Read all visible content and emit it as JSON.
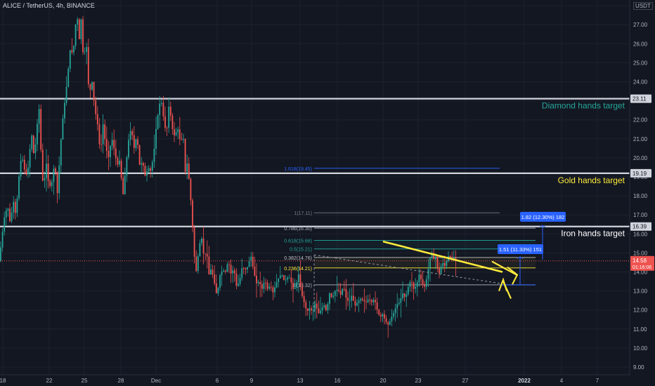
{
  "header": {
    "title": "ALICE / TetherUS, 4h, BINANCE",
    "currency": "USDT"
  },
  "colors": {
    "background": "#131722",
    "grid": "#1e222d",
    "up": "#26a69a",
    "down": "#ef5350",
    "level": "#d1d4dc",
    "diamond": "#26a69a",
    "gold": "#ffeb3b",
    "iron": "#ffffff",
    "trend": "#ffeb3b",
    "fib_blue": "#2962ff",
    "price_tag": "#ef5350"
  },
  "chart_data": {
    "type": "candlestick",
    "ylim": [
      9,
      28.4
    ],
    "y_ticks": [
      "9.00",
      "10.00",
      "11.00",
      "12.00",
      "13.00",
      "14.00",
      "15.00",
      "16.00",
      "17.00",
      "18.00",
      "19.00",
      "20.00",
      "21.00",
      "22.00",
      "23.00",
      "24.00",
      "25.00",
      "26.00",
      "27.00",
      "28.00"
    ],
    "x_ticks": [
      "18",
      "22",
      "25",
      "28",
      "Dec",
      "6",
      "9",
      "13",
      "16",
      "20",
      "23",
      "27",
      "2022",
      "4",
      "7"
    ],
    "price_path": [
      [
        0,
        14.6
      ],
      [
        3,
        15.5
      ],
      [
        7,
        16.8
      ],
      [
        12,
        17.5
      ],
      [
        16,
        16.5
      ],
      [
        20,
        17.8
      ],
      [
        24,
        16.9
      ],
      [
        27,
        18.6
      ],
      [
        32,
        20.2
      ],
      [
        36,
        19.4
      ],
      [
        40,
        19.0
      ],
      [
        44,
        20.5
      ],
      [
        47,
        21.3
      ],
      [
        50,
        19.8
      ],
      [
        53,
        21.4
      ],
      [
        57,
        22.6
      ],
      [
        60,
        20.0
      ],
      [
        63,
        18.3
      ],
      [
        67,
        19.8
      ],
      [
        71,
        18.4
      ],
      [
        75,
        18.7
      ],
      [
        79,
        19.8
      ],
      [
        83,
        18.1
      ],
      [
        87,
        20.5
      ],
      [
        91,
        22.2
      ],
      [
        95,
        23.4
      ],
      [
        98,
        24.5
      ],
      [
        102,
        26.0
      ],
      [
        105,
        25.2
      ],
      [
        108,
        26.8
      ],
      [
        111,
        27.5
      ],
      [
        114,
        26.2
      ],
      [
        117,
        27.4
      ],
      [
        120,
        25.0
      ],
      [
        124,
        26.2
      ],
      [
        128,
        23.2
      ],
      [
        132,
        24.1
      ],
      [
        136,
        22.6
      ],
      [
        140,
        21.8
      ],
      [
        144,
        20.2
      ],
      [
        148,
        21.8
      ],
      [
        152,
        20.5
      ],
      [
        156,
        20.0
      ],
      [
        160,
        21.1
      ],
      [
        164,
        20.4
      ],
      [
        168,
        19.6
      ],
      [
        172,
        19.9
      ],
      [
        176,
        17.9
      ],
      [
        180,
        19.4
      ],
      [
        184,
        20.9
      ],
      [
        188,
        21.6
      ],
      [
        192,
        20.5
      ],
      [
        196,
        21.2
      ],
      [
        200,
        19.6
      ],
      [
        204,
        19.8
      ],
      [
        208,
        19.0
      ],
      [
        212,
        19.5
      ],
      [
        216,
        19.3
      ],
      [
        220,
        20.2
      ],
      [
        224,
        21.8
      ],
      [
        227,
        22.5
      ],
      [
        230,
        23.2
      ],
      [
        234,
        22.1
      ],
      [
        238,
        21.2
      ],
      [
        242,
        22.9
      ],
      [
        246,
        21.6
      ],
      [
        250,
        21.1
      ],
      [
        254,
        21.6
      ],
      [
        258,
        20.8
      ],
      [
        262,
        21.2
      ],
      [
        265,
        19.2
      ],
      [
        268,
        19.8
      ],
      [
        271,
        18.5
      ],
      [
        274,
        17.2
      ],
      [
        277,
        15.2
      ],
      [
        280,
        13.9
      ],
      [
        283,
        14.8
      ],
      [
        286,
        15.6
      ],
      [
        289,
        15.8
      ],
      [
        292,
        14.5
      ],
      [
        295,
        15.4
      ],
      [
        298,
        13.8
      ],
      [
        302,
        14.2
      ],
      [
        306,
        13.5
      ],
      [
        310,
        12.7
      ],
      [
        314,
        13.8
      ],
      [
        318,
        14.1
      ],
      [
        322,
        14.0
      ],
      [
        326,
        14.6
      ],
      [
        330,
        13.9
      ],
      [
        334,
        14.2
      ],
      [
        338,
        13.2
      ],
      [
        342,
        13.5
      ],
      [
        346,
        14.3
      ],
      [
        350,
        14.1
      ],
      [
        354,
        14.3
      ],
      [
        358,
        14.9
      ],
      [
        362,
        14.1
      ],
      [
        366,
        13.4
      ],
      [
        370,
        13.5
      ],
      [
        374,
        13.1
      ],
      [
        378,
        13.6
      ],
      [
        382,
        13.1
      ],
      [
        386,
        13.3
      ],
      [
        390,
        12.9
      ],
      [
        394,
        13.4
      ],
      [
        398,
        13.7
      ],
      [
        402,
        13.9
      ],
      [
        406,
        13.5
      ],
      [
        410,
        13.7
      ],
      [
        414,
        13.7
      ],
      [
        418,
        13.1
      ],
      [
        422,
        13.2
      ],
      [
        426,
        13.9
      ],
      [
        430,
        12.9
      ],
      [
        434,
        12.4
      ],
      [
        438,
        11.9
      ],
      [
        442,
        12.1
      ],
      [
        446,
        11.9
      ],
      [
        450,
        12.4
      ],
      [
        454,
        11.8
      ],
      [
        458,
        12.0
      ],
      [
        462,
        12.3
      ],
      [
        466,
        11.9
      ],
      [
        470,
        12.9
      ],
      [
        474,
        12.6
      ],
      [
        478,
        13.0
      ],
      [
        482,
        13.1
      ],
      [
        486,
        12.8
      ],
      [
        490,
        13.3
      ],
      [
        494,
        12.6
      ],
      [
        498,
        12.4
      ],
      [
        502,
        12.8
      ],
      [
        506,
        12.2
      ],
      [
        510,
        12.4
      ],
      [
        514,
        12.6
      ],
      [
        518,
        12.5
      ],
      [
        522,
        12.4
      ],
      [
        526,
        12.6
      ],
      [
        530,
        12.4
      ],
      [
        534,
        12.6
      ],
      [
        538,
        12.0
      ],
      [
        542,
        11.6
      ],
      [
        546,
        11.8
      ],
      [
        550,
        11.4
      ],
      [
        554,
        11.2
      ],
      [
        558,
        11.6
      ],
      [
        562,
        11.9
      ],
      [
        566,
        12.3
      ],
      [
        570,
        12.4
      ],
      [
        574,
        12.9
      ],
      [
        578,
        12.6
      ],
      [
        582,
        13.2
      ],
      [
        586,
        13.6
      ],
      [
        590,
        13.1
      ],
      [
        594,
        13.3
      ],
      [
        598,
        13.9
      ],
      [
        602,
        13.4
      ],
      [
        606,
        13.2
      ],
      [
        610,
        14.0
      ],
      [
        613,
        14.7
      ],
      [
        616,
        15.0
      ],
      [
        619,
        14.6
      ],
      [
        622,
        14.9
      ],
      [
        625,
        13.7
      ],
      [
        628,
        14.2
      ],
      [
        631,
        14.5
      ],
      [
        634,
        14.3
      ],
      [
        637,
        14.6
      ],
      [
        640,
        14.9
      ],
      [
        643,
        14.6
      ],
      [
        646,
        14.8
      ],
      [
        650,
        14.58
      ]
    ],
    "horizontal_levels": [
      {
        "price": 23.11,
        "tag": "23.11"
      },
      {
        "price": 19.19,
        "tag": "19.19"
      },
      {
        "price": 16.39,
        "tag": "16.39"
      }
    ],
    "target_labels": [
      {
        "text": "Diamond hands target",
        "price": 23.11,
        "color": "#26a69a"
      },
      {
        "text": "Gold hands target",
        "price": 19.19,
        "color": "#ffeb3b"
      },
      {
        "text": "Iron hands target",
        "price": 16.39,
        "color": "#ffffff"
      }
    ],
    "fib_levels": [
      {
        "label": "1.618(19.45)",
        "price": 19.45,
        "color": "#2962ff"
      },
      {
        "label": "1(17.11)",
        "price": 17.11,
        "color": "#787b86"
      },
      {
        "label": "0.786(16.30)",
        "price": 16.3,
        "color": "#b2b5be"
      },
      {
        "label": "0.618(15.66)",
        "price": 15.66,
        "color": "#26a69a"
      },
      {
        "label": "0.5(15.21)",
        "price": 15.21,
        "color": "#26a69a"
      },
      {
        "label": "0.382(14.76)",
        "price": 14.76,
        "color": "#c0c0c0"
      },
      {
        "label": "0.236(14.21)",
        "price": 14.21,
        "color": "#ffeb3b"
      },
      {
        "label": "0(13.32)",
        "price": 13.32,
        "color": "#b2b5be"
      }
    ],
    "measure_labels": [
      {
        "text": "1.82 (12.30%) 182",
        "price": 16.9
      },
      {
        "text": "1.51 (11.33%) 151",
        "price": 15.2
      }
    ],
    "current_price": {
      "tag": "14.58",
      "countdown": "01:16:06",
      "price": 14.58
    }
  }
}
